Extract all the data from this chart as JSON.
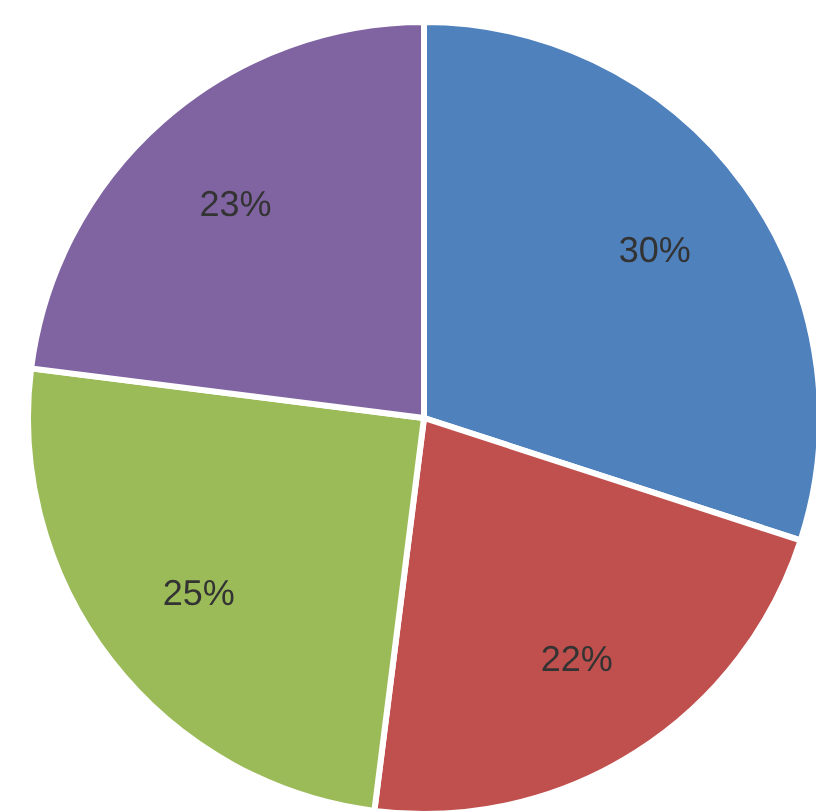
{
  "chart_data": {
    "type": "pie",
    "categories": [
      null,
      null,
      null,
      null
    ],
    "values": [
      30,
      22,
      25,
      23
    ],
    "colors": [
      "#4f81bd",
      "#c0504d",
      "#9bbb59",
      "#8064a2"
    ],
    "value_labels": [
      "30%",
      "22%",
      "25%",
      "23%"
    ],
    "legend": false
  }
}
